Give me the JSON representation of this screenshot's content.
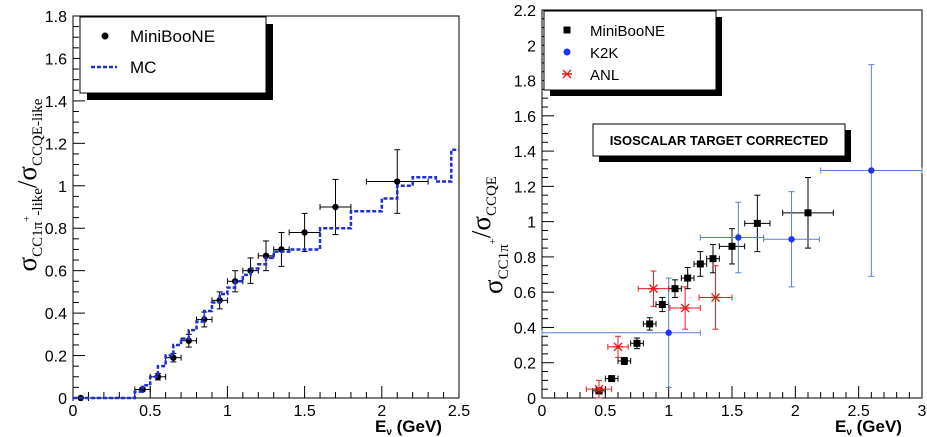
{
  "chart_data": [
    {
      "type": "scatter",
      "title": "",
      "xlabel": "E",
      "xlabel_sub": "ν",
      "xlabel_unit": "(GeV)",
      "ylabel": "σ",
      "ylabel_num_sub": "CC1π",
      "ylabel_num_sup": "+",
      "ylabel_num_tail": "-like",
      "ylabel_den_sub": "CCQE-like",
      "xlim": [
        0,
        2.5
      ],
      "ylim": [
        0,
        1.8
      ],
      "xticks": [
        0,
        0.5,
        1,
        1.5,
        2,
        2.5
      ],
      "xtick_labels": [
        "0",
        "0.5",
        "1",
        "1.5",
        "2",
        "2.5"
      ],
      "yticks": [
        0,
        0.2,
        0.4,
        0.6,
        0.8,
        1,
        1.2,
        1.4,
        1.6,
        1.8
      ],
      "ytick_labels": [
        "0",
        "0.2",
        "0.4",
        "0.6",
        "0.8",
        "1",
        "1.2",
        "1.4",
        "1.6",
        "1.8"
      ],
      "grid": false,
      "legend_placement": "top-left",
      "legend": [
        "MiniBooNE",
        "MC"
      ],
      "series": [
        {
          "name": "MiniBooNE",
          "marker": "circle",
          "color": "#000000",
          "points": [
            {
              "x": 0.05,
              "y": 0.0,
              "xerr": 0.05,
              "yerr": 0.0
            },
            {
              "x": 0.45,
              "y": 0.04,
              "xerr": 0.05,
              "yerr": 0.01
            },
            {
              "x": 0.55,
              "y": 0.1,
              "xerr": 0.05,
              "yerr": 0.015
            },
            {
              "x": 0.65,
              "y": 0.19,
              "xerr": 0.05,
              "yerr": 0.02
            },
            {
              "x": 0.75,
              "y": 0.27,
              "xerr": 0.05,
              "yerr": 0.03
            },
            {
              "x": 0.85,
              "y": 0.37,
              "xerr": 0.05,
              "yerr": 0.035
            },
            {
              "x": 0.95,
              "y": 0.46,
              "xerr": 0.05,
              "yerr": 0.04
            },
            {
              "x": 1.05,
              "y": 0.55,
              "xerr": 0.05,
              "yerr": 0.05
            },
            {
              "x": 1.15,
              "y": 0.6,
              "xerr": 0.05,
              "yerr": 0.06
            },
            {
              "x": 1.25,
              "y": 0.67,
              "xerr": 0.05,
              "yerr": 0.07
            },
            {
              "x": 1.35,
              "y": 0.7,
              "xerr": 0.05,
              "yerr": 0.08
            },
            {
              "x": 1.5,
              "y": 0.78,
              "xerr": 0.1,
              "yerr": 0.09
            },
            {
              "x": 1.7,
              "y": 0.9,
              "xerr": 0.1,
              "yerr": 0.13
            },
            {
              "x": 2.1,
              "y": 1.02,
              "xerr": 0.2,
              "yerr": 0.15
            }
          ]
        },
        {
          "name": "MC",
          "style": "dashed-step",
          "color": "#1f2fd0",
          "edges": [
            0,
            0.4,
            0.45,
            0.5,
            0.55,
            0.6,
            0.65,
            0.7,
            0.75,
            0.8,
            0.85,
            0.9,
            0.95,
            1.0,
            1.05,
            1.1,
            1.15,
            1.2,
            1.25,
            1.3,
            1.4,
            1.6,
            1.8,
            2.0,
            2.1,
            2.2,
            2.35,
            2.45,
            2.5
          ],
          "values": [
            0.0,
            0.03,
            0.06,
            0.1,
            0.15,
            0.2,
            0.25,
            0.28,
            0.32,
            0.36,
            0.41,
            0.45,
            0.49,
            0.52,
            0.55,
            0.58,
            0.61,
            0.63,
            0.66,
            0.69,
            0.7,
            0.8,
            0.88,
            0.94,
            1.0,
            1.04,
            1.02,
            1.17
          ]
        }
      ]
    },
    {
      "type": "scatter",
      "title": "",
      "annotation": "ISOSCALAR TARGET CORRECTED",
      "xlabel": "E",
      "xlabel_sub": "ν",
      "xlabel_unit": "(GeV)",
      "ylabel": "σ",
      "ylabel_num_sub": "CC1π",
      "ylabel_num_sup": "+",
      "ylabel_den_sub": "CCQE",
      "xlim": [
        0,
        3
      ],
      "ylim": [
        0,
        2.2
      ],
      "xticks": [
        0,
        0.5,
        1,
        1.5,
        2,
        2.5,
        3
      ],
      "xtick_labels": [
        "0",
        "0.5",
        "1",
        "1.5",
        "2",
        "2.5",
        "3"
      ],
      "yticks": [
        0,
        0.2,
        0.4,
        0.6,
        0.8,
        1,
        1.2,
        1.4,
        1.6,
        1.8,
        2,
        2.2
      ],
      "ytick_labels": [
        "0",
        "0.2",
        "0.4",
        "0.6",
        "0.8",
        "1",
        "1.2",
        "1.4",
        "1.6",
        "1.8",
        "2",
        "2.2"
      ],
      "grid": false,
      "legend_placement": "top-left",
      "legend": [
        "MiniBooNE",
        "K2K",
        "ANL"
      ],
      "series": [
        {
          "name": "MiniBooNE",
          "marker": "square",
          "color": "#000000",
          "points": [
            {
              "x": 0.45,
              "y": 0.04,
              "xerr": 0.05,
              "yerr": 0.01
            },
            {
              "x": 0.55,
              "y": 0.11,
              "xerr": 0.05,
              "yerr": 0.015
            },
            {
              "x": 0.65,
              "y": 0.21,
              "xerr": 0.05,
              "yerr": 0.02
            },
            {
              "x": 0.75,
              "y": 0.31,
              "xerr": 0.05,
              "yerr": 0.03
            },
            {
              "x": 0.85,
              "y": 0.42,
              "xerr": 0.05,
              "yerr": 0.035
            },
            {
              "x": 0.95,
              "y": 0.53,
              "xerr": 0.05,
              "yerr": 0.04
            },
            {
              "x": 1.05,
              "y": 0.62,
              "xerr": 0.05,
              "yerr": 0.05
            },
            {
              "x": 1.15,
              "y": 0.68,
              "xerr": 0.05,
              "yerr": 0.06
            },
            {
              "x": 1.25,
              "y": 0.76,
              "xerr": 0.05,
              "yerr": 0.07
            },
            {
              "x": 1.35,
              "y": 0.79,
              "xerr": 0.05,
              "yerr": 0.08
            },
            {
              "x": 1.5,
              "y": 0.86,
              "xerr": 0.1,
              "yerr": 0.1
            },
            {
              "x": 1.7,
              "y": 0.99,
              "xerr": 0.1,
              "yerr": 0.16
            },
            {
              "x": 2.1,
              "y": 1.05,
              "xerr": 0.2,
              "yerr": 0.2
            }
          ]
        },
        {
          "name": "K2K",
          "marker": "circle",
          "color": "#1a33ff",
          "errcolor": "#5a7fd6",
          "points": [
            {
              "x": 1.0,
              "y": 0.37,
              "xerr_lo": 1.0,
              "xerr_hi": 0.25,
              "yerr": 0.31
            },
            {
              "x": 1.55,
              "y": 0.91,
              "xerr_lo": 0.3,
              "xerr_hi": 0.2,
              "yerr": 0.2
            },
            {
              "x": 1.97,
              "y": 0.9,
              "xerr_lo": 0.22,
              "xerr_hi": 0.22,
              "yerr": 0.27
            },
            {
              "x": 2.6,
              "y": 1.29,
              "xerr_lo": 0.4,
              "xerr_hi": 0.4,
              "yerr": 0.6
            }
          ]
        },
        {
          "name": "ANL",
          "marker": "star",
          "color": "#e02020",
          "points": [
            {
              "x": 0.45,
              "y": 0.05,
              "xerr": 0.1,
              "yerr": 0.05
            },
            {
              "x": 0.6,
              "y": 0.29,
              "xerr": 0.08,
              "yerr": 0.06
            },
            {
              "x": 0.88,
              "y": 0.62,
              "xerr": 0.12,
              "yerr": 0.1
            },
            {
              "x": 1.13,
              "y": 0.51,
              "xerr": 0.12,
              "yerr": 0.12
            },
            {
              "x": 1.37,
              "y": 0.57,
              "xerr": 0.13,
              "yerr": 0.18
            }
          ]
        }
      ]
    }
  ]
}
